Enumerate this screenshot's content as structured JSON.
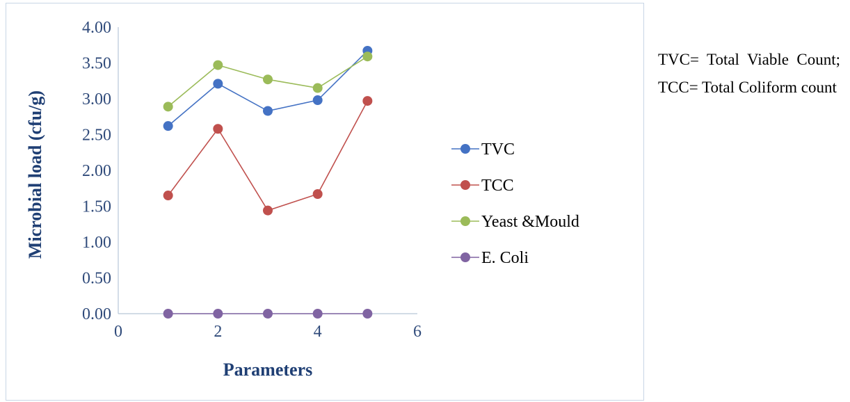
{
  "chart_data": {
    "type": "scatter",
    "title": "",
    "xlabel": "Parameters",
    "ylabel": "Microbial load (cfu/g)",
    "xlim": [
      0,
      6
    ],
    "ylim": [
      0,
      4
    ],
    "x_ticks": [
      "0",
      "2",
      "4",
      "6"
    ],
    "y_ticks": [
      "0.00",
      "0.50",
      "1.00",
      "1.50",
      "2.00",
      "2.50",
      "3.00",
      "3.50",
      "4.00"
    ],
    "grid": false,
    "legend_position": "right",
    "x": [
      1,
      2,
      3,
      4,
      5
    ],
    "series": [
      {
        "name": "TVC",
        "color": "#4472c4",
        "values": [
          2.62,
          3.21,
          2.83,
          2.98,
          3.67
        ]
      },
      {
        "name": "TCC",
        "color": "#c0504d",
        "values": [
          1.65,
          2.58,
          1.44,
          1.67,
          2.97
        ]
      },
      {
        "name": "Yeast &Mould",
        "color": "#9bbb59",
        "values": [
          2.89,
          3.47,
          3.27,
          3.15,
          3.59
        ]
      },
      {
        "name": "E. Coli",
        "color": "#8064a2",
        "values": [
          0,
          0,
          0,
          0,
          0
        ]
      }
    ]
  },
  "note": {
    "text": "TVC= Total Viable Count; TCC= Total Coliform count"
  }
}
